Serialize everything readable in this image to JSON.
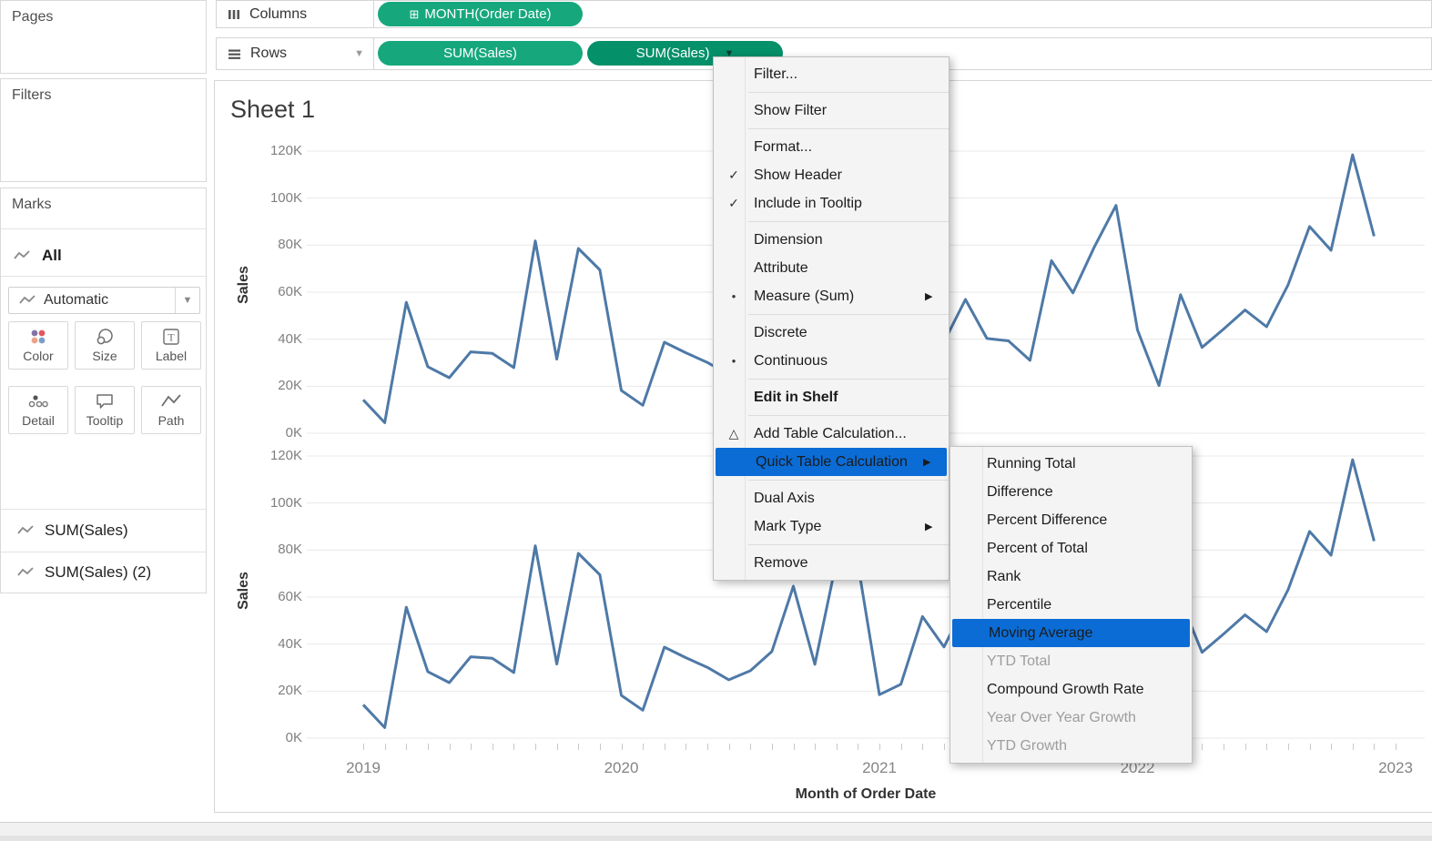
{
  "colors": {
    "pill_green": "#16a87c",
    "pill_green_selected": "#049069",
    "line_blue": "#4e79a7",
    "menu_highlight": "#0b6cd6",
    "grid": "#e8e8e8",
    "axis_line": "#cfcfcf"
  },
  "sidebar": {
    "pages_title": "Pages",
    "filters_title": "Filters",
    "marks": {
      "title": "Marks",
      "card_label": "All",
      "mark_type_value": "Automatic",
      "buttons": [
        {
          "label": "Color"
        },
        {
          "label": "Size"
        },
        {
          "label": "Label"
        },
        {
          "label": "Detail"
        },
        {
          "label": "Tooltip"
        },
        {
          "label": "Path"
        }
      ]
    },
    "field_cards": [
      {
        "label": "SUM(Sales)"
      },
      {
        "label": "SUM(Sales) (2)"
      }
    ]
  },
  "shelves": {
    "columns": {
      "label": "Columns",
      "pills": [
        {
          "text": "MONTH(Order Date)",
          "icon_glyph": "⊞",
          "icon_name": "expand-plus-icon"
        }
      ]
    },
    "rows": {
      "label": "Rows",
      "pills": [
        {
          "text": "SUM(Sales)",
          "selected": false
        },
        {
          "text": "SUM(Sales)",
          "selected": true,
          "caret_glyph": "▼"
        }
      ]
    }
  },
  "sheet": {
    "title": "Sheet 1"
  },
  "context_menu": {
    "items": [
      {
        "label": "Filter..."
      },
      {
        "type": "sep"
      },
      {
        "label": "Show Filter"
      },
      {
        "type": "sep"
      },
      {
        "label": "Format..."
      },
      {
        "label": "Show Header",
        "checked": true
      },
      {
        "label": "Include in Tooltip",
        "checked": true
      },
      {
        "type": "sep"
      },
      {
        "label": "Dimension"
      },
      {
        "label": "Attribute"
      },
      {
        "label": "Measure (Sum)",
        "bullet": true,
        "submenu": true
      },
      {
        "type": "sep"
      },
      {
        "label": "Discrete"
      },
      {
        "label": "Continuous",
        "bullet": true
      },
      {
        "type": "sep"
      },
      {
        "label": "Edit in Shelf",
        "bold": true
      },
      {
        "type": "sep"
      },
      {
        "label": "Add Table Calculation...",
        "icon": "△"
      },
      {
        "label": "Quick Table Calculation",
        "highlighted": true,
        "submenu": true
      },
      {
        "type": "sep"
      },
      {
        "label": "Dual Axis"
      },
      {
        "label": "Mark Type",
        "submenu": true
      },
      {
        "type": "sep"
      },
      {
        "label": "Remove"
      }
    ]
  },
  "quick_table_calc_submenu": {
    "items": [
      {
        "label": "Running Total"
      },
      {
        "label": "Difference"
      },
      {
        "label": "Percent Difference"
      },
      {
        "label": "Percent of Total"
      },
      {
        "label": "Rank"
      },
      {
        "label": "Percentile"
      },
      {
        "label": "Moving Average",
        "highlighted": true
      },
      {
        "label": "YTD Total",
        "disabled": true
      },
      {
        "label": "Compound Growth Rate"
      },
      {
        "label": "Year Over Year Growth",
        "disabled": true
      },
      {
        "label": "YTD Growth",
        "disabled": true
      }
    ]
  },
  "chart_data": {
    "type": "line",
    "title": "Sheet 1",
    "xlabel": "Month of Order Date",
    "ylabel": "Sales",
    "ylim": [
      0,
      120000
    ],
    "y_tick_labels": [
      "0K",
      "20K",
      "40K",
      "60K",
      "80K",
      "100K",
      "120K"
    ],
    "x_tick_labels": [
      "2019",
      "2020",
      "2021",
      "2022",
      "2023"
    ],
    "x_unit": "month",
    "x_start": "2019-01",
    "x_end": "2022-12",
    "series": [
      {
        "name": "SUM(Sales)",
        "values_thousands": [
          14.2,
          4.5,
          55.7,
          28.3,
          23.6,
          34.6,
          34.0,
          27.9,
          81.8,
          31.5,
          78.6,
          69.5,
          18.2,
          11.9,
          38.7,
          34.2,
          30.1,
          24.8,
          28.7,
          36.9,
          64.6,
          31.4,
          75.2,
          74.1,
          18.5,
          22.9,
          51.7,
          38.8,
          56.9,
          40.3,
          39.3,
          31.0,
          73.4,
          59.7,
          79.4,
          96.9,
          43.9,
          20.3,
          58.9,
          36.5,
          44.3,
          52.4,
          45.3,
          63.1,
          87.9,
          77.8,
          118.4,
          83.8
        ]
      },
      {
        "name": "SUM(Sales) (2)",
        "values_thousands": [
          14.2,
          4.5,
          55.7,
          28.3,
          23.6,
          34.6,
          34.0,
          27.9,
          81.8,
          31.5,
          78.6,
          69.5,
          18.2,
          11.9,
          38.7,
          34.2,
          30.1,
          24.8,
          28.7,
          36.9,
          64.6,
          31.4,
          75.2,
          74.1,
          18.5,
          22.9,
          51.7,
          38.8,
          56.9,
          40.3,
          39.3,
          31.0,
          73.4,
          59.7,
          79.4,
          96.9,
          43.9,
          20.3,
          58.9,
          36.5,
          44.3,
          52.4,
          45.3,
          63.1,
          87.9,
          77.8,
          118.4,
          83.8
        ]
      }
    ],
    "legend": "none",
    "grid": "horizontal-only"
  }
}
